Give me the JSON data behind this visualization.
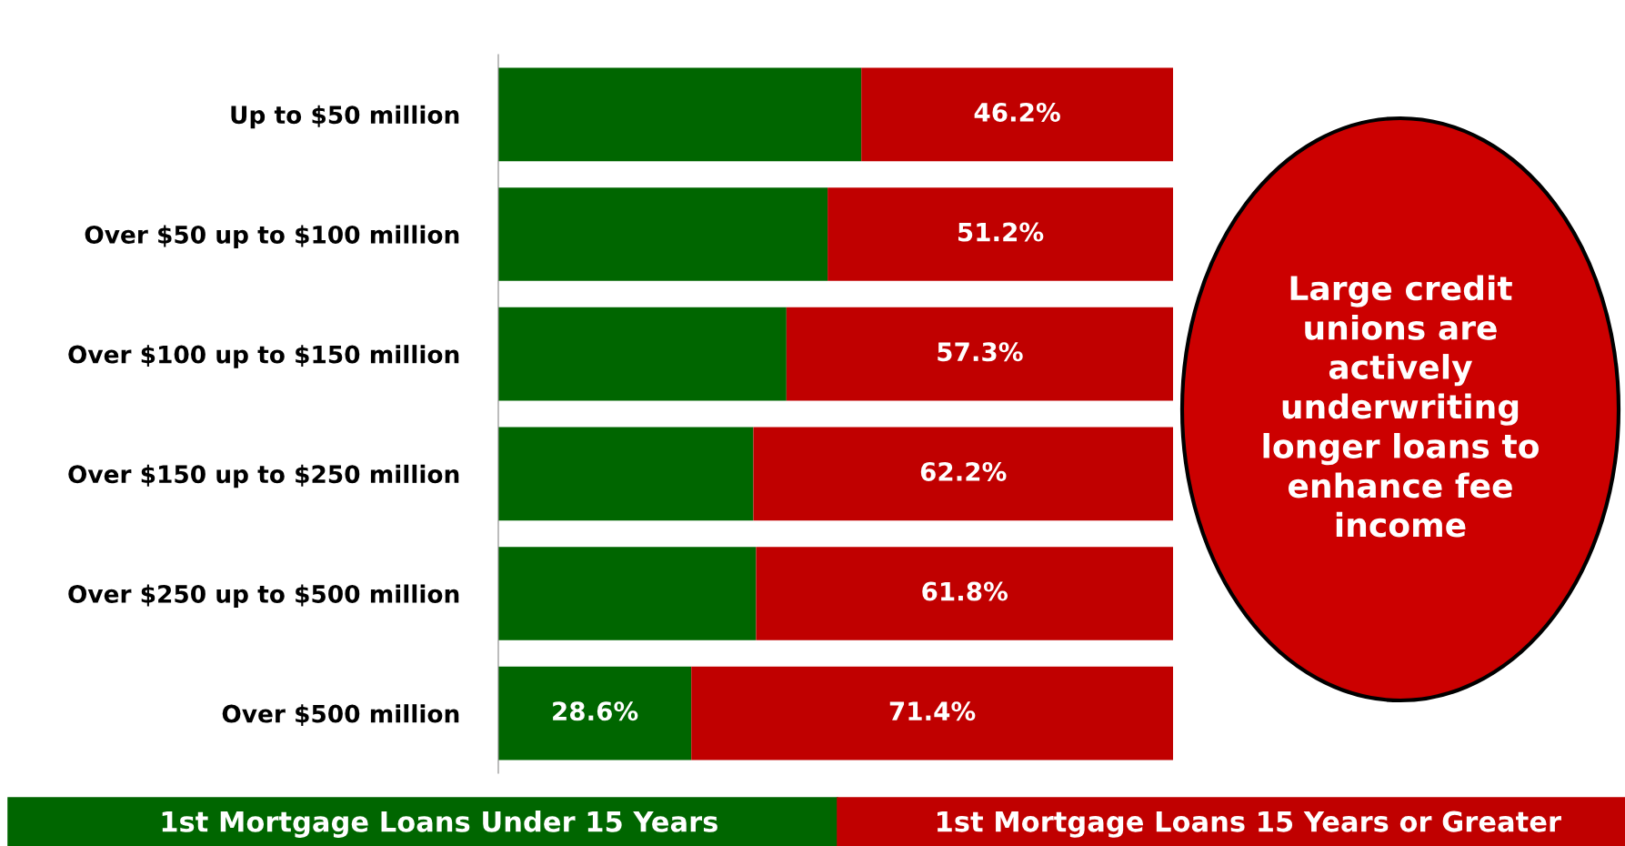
{
  "chart_data": {
    "type": "bar",
    "orientation": "horizontal",
    "stacked": true,
    "categories": [
      "Up to $50 million",
      "Over $50 up to $100 million",
      "Over $100 up to $150 million",
      "Over $150 up to $250 million",
      "Over $250 up to $500 million",
      "Over $500 million"
    ],
    "series": [
      {
        "name": "1st Mortgage Loans Under 15 Years",
        "color": "#006600",
        "values": [
          53.8,
          48.8,
          42.7,
          37.8,
          38.2,
          28.6
        ],
        "value_labels": [
          null,
          null,
          null,
          null,
          null,
          "28.6%"
        ]
      },
      {
        "name": "1st Mortgage Loans 15 Years or Greater",
        "color": "#c00000",
        "values": [
          46.2,
          51.2,
          57.3,
          62.2,
          61.8,
          71.4
        ],
        "value_labels": [
          "46.2%",
          "51.2%",
          "57.3%",
          "62.2%",
          "61.8%",
          "71.4%"
        ]
      }
    ],
    "xlim": [
      0,
      100
    ],
    "tick_labels": "y",
    "legend": "bottom",
    "grid": false,
    "annotations": [
      "Large credit unions are actively underwriting longer loans to enhance fee income"
    ]
  }
}
